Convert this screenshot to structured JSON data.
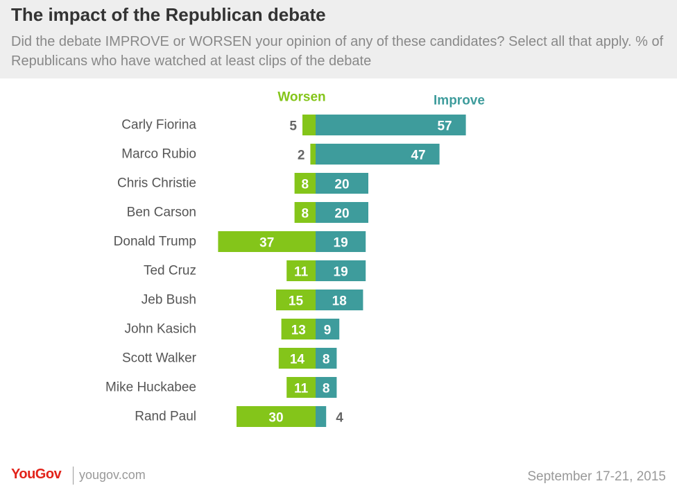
{
  "header": {
    "title": "The impact of the Republican debate",
    "subtitle": "Did the debate IMPROVE or WORSEN your opinion of any of these candidates? Select all that apply. % of Republicans who have watched at least clips of the debate"
  },
  "colors": {
    "worsen": "#84c51a",
    "improve": "#3e9c9c",
    "label": "#555555",
    "value_outside": "#666666",
    "value_inside": "#ffffff"
  },
  "chart_data": {
    "type": "bar",
    "orientation": "horizontal-diverging",
    "categories": [
      "Carly Fiorina",
      "Marco Rubio",
      "Chris Christie",
      "Ben Carson",
      "Donald Trump",
      "Ted Cruz",
      "Jeb Bush",
      "John Kasich",
      "Scott Walker",
      "Mike Huckabee",
      "Rand Paul"
    ],
    "series": [
      {
        "name": "Worsen",
        "values": [
          5,
          2,
          8,
          8,
          37,
          11,
          15,
          13,
          14,
          11,
          30
        ]
      },
      {
        "name": "Improve",
        "values": [
          57,
          47,
          20,
          20,
          19,
          19,
          18,
          9,
          8,
          8,
          4
        ]
      }
    ],
    "legend_placement": "top",
    "grid": false
  },
  "footer": {
    "logo": "YouGov",
    "site": "yougov.com",
    "date": "September 17-21, 2015"
  }
}
